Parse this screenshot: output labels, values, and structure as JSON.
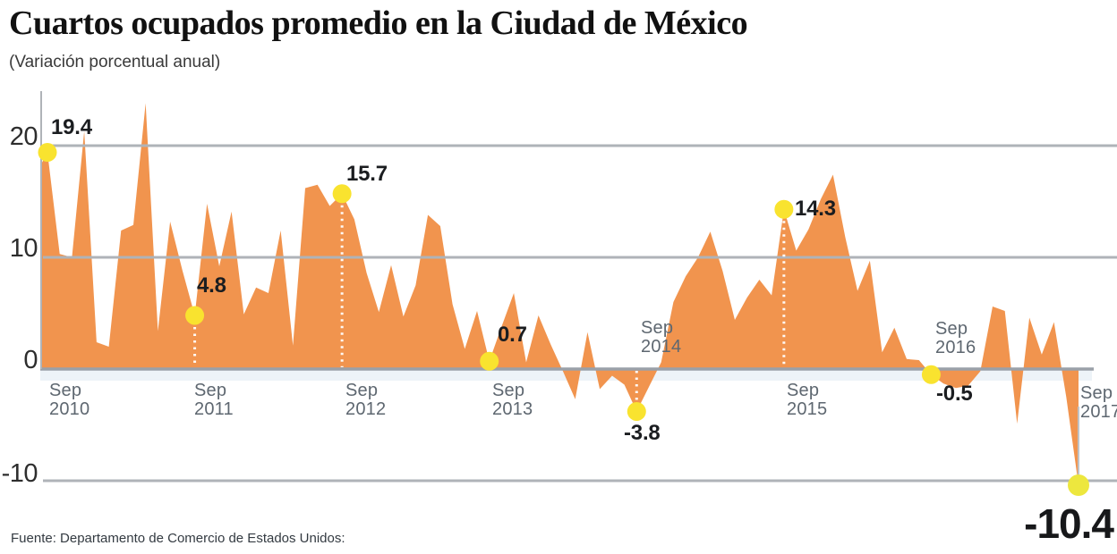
{
  "header": {
    "title": "Cuartos ocupados promedio en la Ciudad de México",
    "subtitle": "(Variación porcentual anual)"
  },
  "footer": {
    "source": "Fuente: Departamento de Comercio de Estados Unidos:"
  },
  "chart_data": {
    "type": "area",
    "title": "Cuartos ocupados promedio en la Ciudad de México",
    "subtitle": "(Variación porcentual anual)",
    "x_unit": "month",
    "x_range": [
      "Sep 2010",
      "Sep 2017"
    ],
    "ylim": [
      -13,
      25
    ],
    "grid": true,
    "y_ticks": [
      {
        "label": "20",
        "value": 20
      },
      {
        "label": "10",
        "value": 10
      },
      {
        "label": "0",
        "value": 0
      },
      {
        "label": "-10",
        "value": -10
      }
    ],
    "x_ticks": [
      {
        "month": "Sep",
        "year": "2010",
        "month_index": 0,
        "side": "below"
      },
      {
        "month": "Sep",
        "year": "2011",
        "month_index": 12,
        "side": "below"
      },
      {
        "month": "Sep",
        "year": "2012",
        "month_index": 24,
        "side": "below"
      },
      {
        "month": "Sep",
        "year": "2013",
        "month_index": 36,
        "side": "below"
      },
      {
        "month": "Sep",
        "year": "2014",
        "month_index": 48,
        "side": "above"
      },
      {
        "month": "Sep",
        "year": "2015",
        "month_index": 60,
        "side": "below"
      },
      {
        "month": "Sep",
        "year": "2016",
        "month_index": 72,
        "side": "above"
      },
      {
        "month": "Sep",
        "year": "2017",
        "month_index": 84,
        "side": "below"
      }
    ],
    "values": [
      19.4,
      10.3,
      10.0,
      21.3,
      2.4,
      2.0,
      12.4,
      12.9,
      23.8,
      3.4,
      13.2,
      8.8,
      4.8,
      14.8,
      9.2,
      14.1,
      4.9,
      7.3,
      6.8,
      12.4,
      2.1,
      16.2,
      16.5,
      14.6,
      15.7,
      13.4,
      8.6,
      5.1,
      9.3,
      4.7,
      7.5,
      13.8,
      12.8,
      5.8,
      1.8,
      5.2,
      0.7,
      3.8,
      6.8,
      0.6,
      4.8,
      2.2,
      -0.2,
      -2.7,
      3.3,
      -1.8,
      -0.6,
      -1.4,
      -3.8,
      -1.6,
      0.6,
      6.0,
      8.3,
      10.0,
      12.3,
      8.8,
      4.4,
      6.4,
      8.0,
      6.6,
      14.3,
      10.6,
      12.5,
      15.2,
      17.4,
      11.8,
      7.0,
      9.7,
      1.5,
      3.7,
      0.9,
      0.8,
      -0.5,
      -1.3,
      -1.7,
      -1.5,
      -0.2,
      5.6,
      5.2,
      -4.9,
      4.6,
      1.3,
      4.2,
      -2.5,
      -10.4
    ],
    "highlights": [
      {
        "x": "Sep 2010",
        "month_index": 0,
        "value": 19.4,
        "label": "19.4",
        "dotted_line": false,
        "connector_line": false
      },
      {
        "x": "Sep 2011",
        "month_index": 12,
        "value": 4.8,
        "label": "4.8",
        "dotted_line": true,
        "connector_line": false
      },
      {
        "x": "Sep 2012",
        "month_index": 24,
        "value": 15.7,
        "label": "15.7",
        "dotted_line": true,
        "connector_line": false
      },
      {
        "x": "Sep 2013",
        "month_index": 36,
        "value": 0.7,
        "label": "0.7",
        "dotted_line": false,
        "connector_line": false
      },
      {
        "x": "Sep 2014",
        "month_index": 48,
        "value": -3.8,
        "label": "-3.8",
        "dotted_line": true,
        "connector_line": false
      },
      {
        "x": "Sep 2015",
        "month_index": 60,
        "value": 14.3,
        "label": "14.3",
        "dotted_line": true,
        "connector_line": false
      },
      {
        "x": "Sep 2016",
        "month_index": 72,
        "value": -0.5,
        "label": "-0.5",
        "dotted_line": false,
        "connector_line": false
      },
      {
        "x": "Sep 2017",
        "month_index": 84,
        "value": -10.4,
        "label": "-10.4",
        "dotted_line": false,
        "connector_line": true
      }
    ],
    "colors": {
      "area": "#F1944E",
      "marker": "#F9E32F",
      "marker_last": "#EDE73E",
      "grid": "#AFB3B8",
      "zero_line": "#9AA0A8",
      "dotted_line": "#FFFFFF",
      "connector": "#BFC3C7",
      "label_text": "#1B1D20",
      "tick_text": "#5E6770"
    }
  }
}
